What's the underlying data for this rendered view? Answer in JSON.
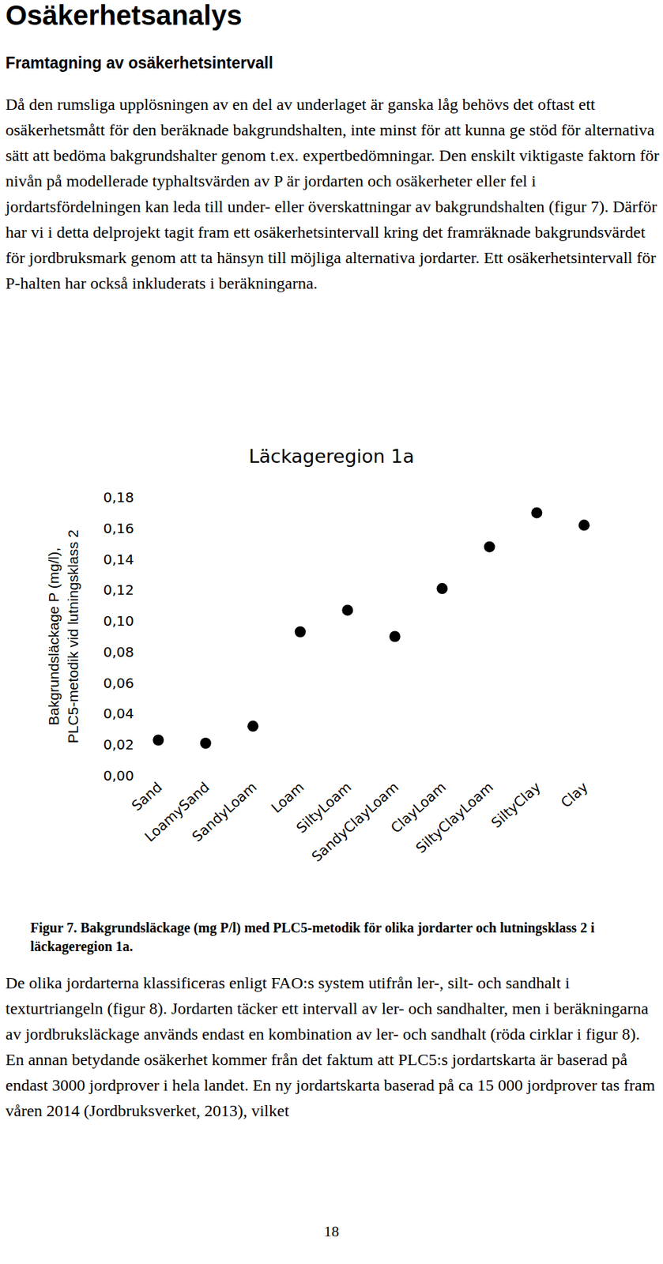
{
  "heading": "Osäkerhetsanalys",
  "subheading": "Framtagning av osäkerhetsintervall",
  "paragraph_1": "Då den rumsliga upplösningen av en del av underlaget är ganska låg behövs det oftast ett osäkerhetsmått för den beräknade bakgrundshalten, inte minst för att kunna ge stöd för alternativa sätt att bedöma bakgrundshalter genom t.ex. expertbedömningar. Den enskilt viktigaste faktorn för nivån på modellerade typhaltsvärden av P är jordarten och osäkerheter eller fel i jordartsfördelningen kan leda till under- eller överskattningar av bakgrundshalten (figur 7). Därför har vi i detta delprojekt tagit fram ett osäkerhetsintervall kring det framräknade bakgrundsvärdet för jordbruksmark genom att ta hänsyn till möjliga alternativa jordarter. Ett osäkerhetsintervall för P-halten har också inkluderats i beräkningarna.",
  "chart_data": {
    "type": "scatter",
    "title": "Läckageregion 1a",
    "y_label": [
      "Bakgrundsläckage P (mg/l),",
      "PLC5-metodik vid lutningsklass 2"
    ],
    "categories": [
      "Sand",
      "LoamySand",
      "SandyLoam",
      "Loam",
      "SiltyLoam",
      "SandyClayLoam",
      "ClayLoam",
      "SiltyClayLoam",
      "SiltyClay",
      "Clay"
    ],
    "values": [
      0.023,
      0.021,
      0.032,
      0.093,
      0.107,
      0.09,
      0.121,
      0.148,
      0.17,
      0.162
    ],
    "color": "#000000",
    "marker": "circle",
    "grid": false,
    "ylim": [
      0,
      0.18
    ],
    "yticks": [
      {
        "value": 0,
        "label": "0,00"
      },
      {
        "value": 0.02,
        "label": "0,02"
      },
      {
        "value": 0.04,
        "label": "0,04"
      },
      {
        "value": 0.06,
        "label": "0,06"
      },
      {
        "value": 0.08,
        "label": "0,08"
      },
      {
        "value": 0.1,
        "label": "0,10"
      },
      {
        "value": 0.12,
        "label": "0,12"
      },
      {
        "value": 0.14,
        "label": "0,14"
      },
      {
        "value": 0.16,
        "label": "0,16"
      },
      {
        "value": 0.18,
        "label": "0,18"
      }
    ]
  },
  "caption": "Figur 7. Bakgrundsläckage (mg P/l) med PLC5-metodik för olika jordarter och lutningsklass 2 i läckageregion 1a.",
  "paragraph_2": "De olika jordarterna klassificeras enligt FAO:s system utifrån ler-, silt- och sandhalt i texturtriangeln (figur 8). Jordarten täcker ett intervall av ler- och sandhalter, men i beräkningarna av jordbruksläckage används endast en kombination av ler- och sandhalt (röda cirklar i figur 8). En annan betydande osäkerhet kommer från det faktum att PLC5:s jordartskarta är baserad på endast 3000 jordprover i hela landet. En ny jordartskarta baserad på ca 15 000 jordprover tas fram våren 2014 (Jordbruksverket, 2013), vilket",
  "page_number": "18"
}
